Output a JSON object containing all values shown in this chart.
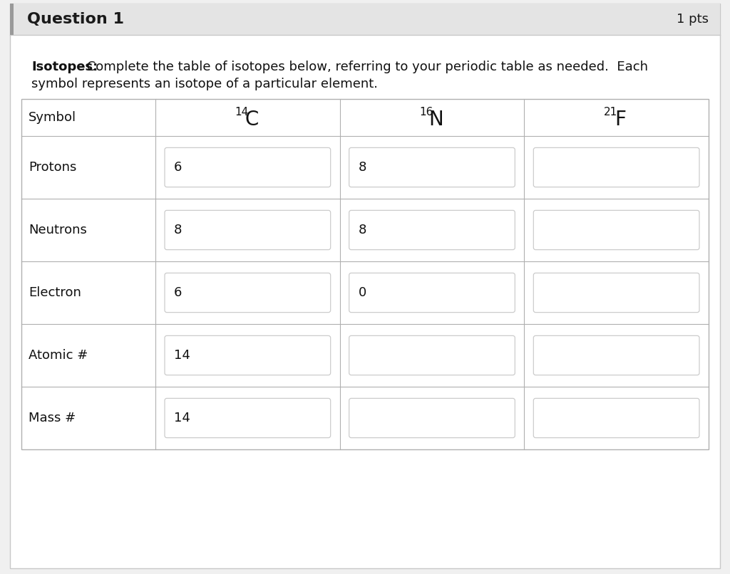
{
  "title": "Question 1",
  "pts": "1 pts",
  "instruction_bold": "Isotopes:",
  "bg_color": "#f0f0f0",
  "content_bg": "#ffffff",
  "header_bg": "#e4e4e4",
  "border_color": "#c8c8c8",
  "table_border": "#b0b0b0",
  "input_box_bg": "#ffffff",
  "input_box_border": "#cccccc",
  "text_color": "#111111",
  "row_labels": [
    "Symbol",
    "Protons",
    "Neutrons",
    "Electron",
    "Atomic #",
    "Mass #"
  ],
  "col_symbols": [
    {
      "sup": "14",
      "base": "C"
    },
    {
      "sup": "16",
      "base": "N"
    },
    {
      "sup": "21",
      "base": "F"
    }
  ],
  "cell_values": [
    [
      "6",
      "8",
      ""
    ],
    [
      "8",
      "8",
      ""
    ],
    [
      "6",
      "0",
      ""
    ],
    [
      "14",
      "",
      ""
    ],
    [
      "14",
      "",
      ""
    ]
  ],
  "figsize": [
    10.24,
    8.06
  ],
  "dpi": 100
}
